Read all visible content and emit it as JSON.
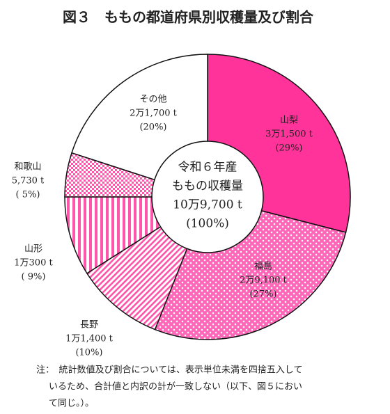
{
  "chart_data": {
    "type": "donut",
    "title": "図３　ももの都道府県別収穫量及び割合",
    "categories": [
      "山梨",
      "福島",
      "長野",
      "山形",
      "和歌山",
      "その他"
    ],
    "values": [
      29,
      27,
      10,
      9,
      5,
      20
    ],
    "value_labels": [
      "(29%)",
      "(27%)",
      "(10%)",
      "( 9%)",
      "( 5%)",
      "(20%)"
    ],
    "tonnage_labels": [
      "3万1,500 t",
      "2万9,100 t",
      "1万1,400 t",
      "1万300 t",
      "5,730 t",
      "2万1,700 t"
    ],
    "colors": [
      "#ff3399",
      "#ff66b8",
      "#ff55aa",
      "#ff55aa",
      "#ff55aa",
      "#ffffff"
    ],
    "patterns": [
      "solid",
      "dots",
      "diagonal",
      "vertical",
      "checker",
      "solid"
    ],
    "center_text": [
      "令和６年産",
      "ももの収穫量",
      "10万9,700 t",
      "(100%)"
    ],
    "note": [
      "注：　統計数値及び割合については、表示単位未満を四捨五入して",
      "いるため、合計値と内訳の計が一致しない（以下、図５におい",
      "て同じ。）。"
    ]
  }
}
